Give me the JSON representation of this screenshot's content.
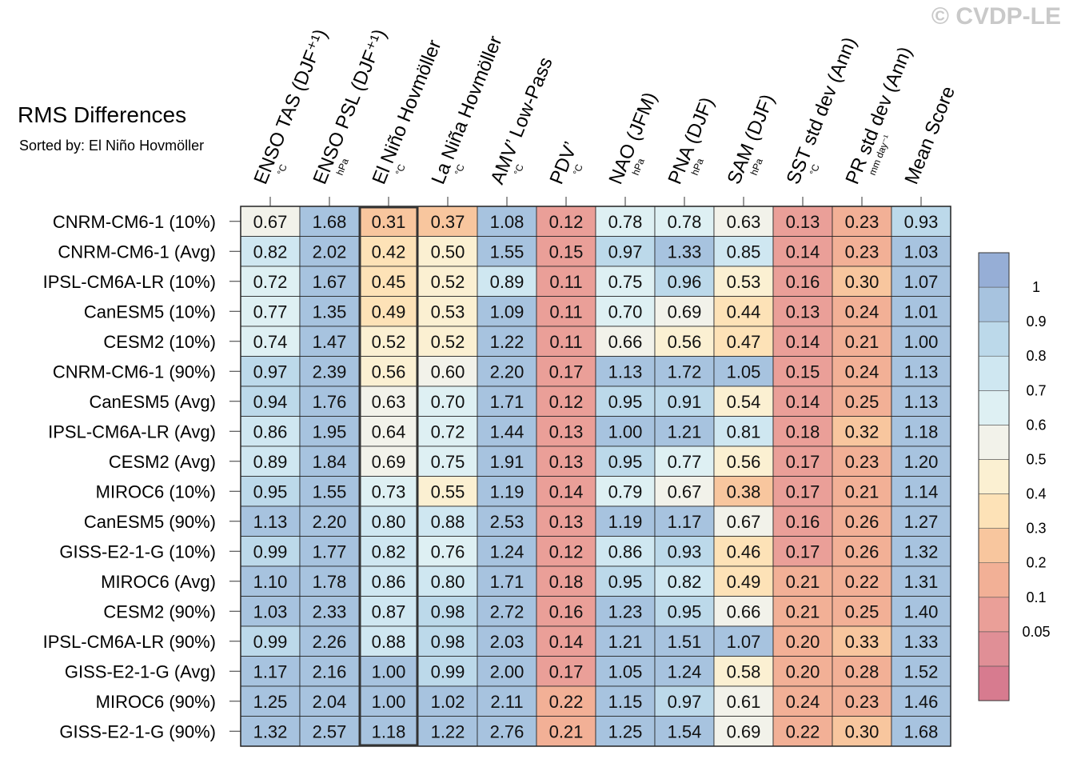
{
  "watermark": "© CVDP-LE",
  "chart_data": {
    "type": "heatmap",
    "title": "RMS Differences",
    "subtitle": "Sorted by: El Niño Hovmöller",
    "columns": [
      {
        "label": "ENSO TAS (DJF⁺¹)",
        "unit": "°C"
      },
      {
        "label": "ENSO PSL (DJF⁺¹)",
        "unit": "hPa"
      },
      {
        "label": "El Niño Hovmöller",
        "unit": "°C"
      },
      {
        "label": "La Niña Hovmöller",
        "unit": "°C"
      },
      {
        "label": "AMV’ Low-Pass",
        "unit": "°C"
      },
      {
        "label": "PDV’",
        "unit": "°C"
      },
      {
        "label": "NAO (JFM)",
        "unit": "hPa"
      },
      {
        "label": "PNA (DJF)",
        "unit": "hPa"
      },
      {
        "label": "SAM (DJF)",
        "unit": "hPa"
      },
      {
        "label": "SST std dev (Ann)",
        "unit": "°C"
      },
      {
        "label": "PR std dev (Ann)",
        "unit": "mm day⁻¹"
      },
      {
        "label": "Mean Score",
        "unit": ""
      }
    ],
    "highlight_column": 2,
    "rows": [
      {
        "label": "CNRM-CM6-1 (10%)",
        "values": [
          0.67,
          1.68,
          0.31,
          0.37,
          1.08,
          0.12,
          0.78,
          0.78,
          0.63,
          0.13,
          0.23,
          0.93
        ]
      },
      {
        "label": "CNRM-CM6-1 (Avg)",
        "values": [
          0.82,
          2.02,
          0.42,
          0.5,
          1.55,
          0.15,
          0.97,
          1.33,
          0.85,
          0.14,
          0.23,
          1.03
        ]
      },
      {
        "label": "IPSL-CM6A-LR (10%)",
        "values": [
          0.72,
          1.67,
          0.45,
          0.52,
          0.89,
          0.11,
          0.75,
          0.96,
          0.53,
          0.16,
          0.3,
          1.07
        ]
      },
      {
        "label": "CanESM5 (10%)",
        "values": [
          0.77,
          1.35,
          0.49,
          0.53,
          1.09,
          0.11,
          0.7,
          0.69,
          0.44,
          0.13,
          0.24,
          1.01
        ]
      },
      {
        "label": "CESM2 (10%)",
        "values": [
          0.74,
          1.47,
          0.52,
          0.52,
          1.22,
          0.11,
          0.66,
          0.56,
          0.47,
          0.14,
          0.21,
          1.0
        ]
      },
      {
        "label": "CNRM-CM6-1 (90%)",
        "values": [
          0.97,
          2.39,
          0.56,
          0.6,
          2.2,
          0.17,
          1.13,
          1.72,
          1.05,
          0.15,
          0.24,
          1.13
        ]
      },
      {
        "label": "CanESM5 (Avg)",
        "values": [
          0.94,
          1.76,
          0.63,
          0.7,
          1.71,
          0.12,
          0.95,
          0.91,
          0.54,
          0.14,
          0.25,
          1.13
        ]
      },
      {
        "label": "IPSL-CM6A-LR (Avg)",
        "values": [
          0.86,
          1.95,
          0.64,
          0.72,
          1.44,
          0.13,
          1.0,
          1.21,
          0.81,
          0.18,
          0.32,
          1.18
        ]
      },
      {
        "label": "CESM2 (Avg)",
        "values": [
          0.89,
          1.84,
          0.69,
          0.75,
          1.91,
          0.13,
          0.95,
          0.77,
          0.56,
          0.17,
          0.23,
          1.2
        ]
      },
      {
        "label": "MIROC6 (10%)",
        "values": [
          0.95,
          1.55,
          0.73,
          0.55,
          1.19,
          0.14,
          0.79,
          0.67,
          0.38,
          0.17,
          0.21,
          1.14
        ]
      },
      {
        "label": "CanESM5 (90%)",
        "values": [
          1.13,
          2.2,
          0.8,
          0.88,
          2.53,
          0.13,
          1.19,
          1.17,
          0.67,
          0.16,
          0.26,
          1.27
        ]
      },
      {
        "label": "GISS-E2-1-G (10%)",
        "values": [
          0.99,
          1.77,
          0.82,
          0.76,
          1.24,
          0.12,
          0.86,
          0.93,
          0.46,
          0.17,
          0.26,
          1.32
        ]
      },
      {
        "label": "MIROC6 (Avg)",
        "values": [
          1.1,
          1.78,
          0.86,
          0.8,
          1.71,
          0.18,
          0.95,
          0.82,
          0.49,
          0.21,
          0.22,
          1.31
        ]
      },
      {
        "label": "CESM2 (90%)",
        "values": [
          1.03,
          2.33,
          0.87,
          0.98,
          2.72,
          0.16,
          1.23,
          0.95,
          0.66,
          0.21,
          0.25,
          1.4
        ]
      },
      {
        "label": "IPSL-CM6A-LR (90%)",
        "values": [
          0.99,
          2.26,
          0.88,
          0.98,
          2.03,
          0.14,
          1.21,
          1.51,
          1.07,
          0.2,
          0.33,
          1.33
        ]
      },
      {
        "label": "GISS-E2-1-G (Avg)",
        "values": [
          1.17,
          2.16,
          1.0,
          0.99,
          2.0,
          0.17,
          1.05,
          1.24,
          0.58,
          0.2,
          0.28,
          1.52
        ]
      },
      {
        "label": "MIROC6 (90%)",
        "values": [
          1.25,
          2.04,
          1.0,
          1.02,
          2.11,
          0.22,
          1.15,
          0.97,
          0.61,
          0.24,
          0.23,
          1.46
        ]
      },
      {
        "label": "GISS-E2-1-G (90%)",
        "values": [
          1.32,
          2.57,
          1.18,
          1.22,
          2.76,
          0.21,
          1.25,
          1.54,
          0.69,
          0.22,
          0.3,
          1.68
        ]
      }
    ],
    "colorbar": {
      "labels": [
        "1",
        "0.9",
        "0.8",
        "0.7",
        "0.6",
        "0.5",
        "0.4",
        "0.3",
        "0.2",
        "0.1",
        "0.05"
      ],
      "colors": [
        "#d77b8f",
        "#e08f96",
        "#ea9f98",
        "#f2b096",
        "#f8c69e",
        "#fde2b7",
        "#fbf0d2",
        "#f2f2ea",
        "#def0f3",
        "#cfe7f1",
        "#bcd9ea",
        "#a7c3df",
        "#96aed6"
      ]
    }
  }
}
